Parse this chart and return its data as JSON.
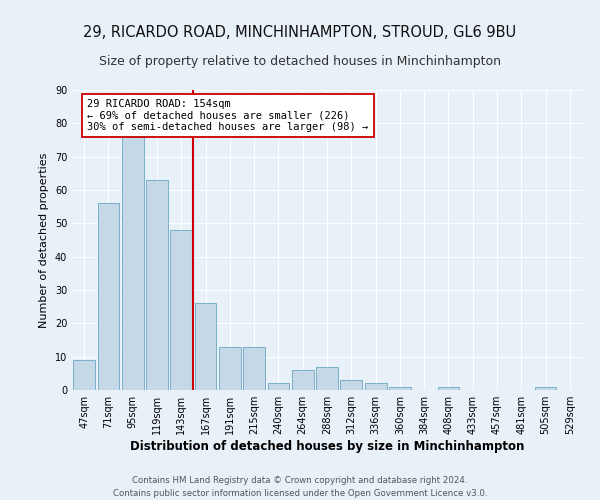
{
  "title": "29, RICARDO ROAD, MINCHINHAMPTON, STROUD, GL6 9BU",
  "subtitle": "Size of property relative to detached houses in Minchinhampton",
  "xlabel": "Distribution of detached houses by size in Minchinhampton",
  "ylabel": "Number of detached properties",
  "footer_line1": "Contains HM Land Registry data © Crown copyright and database right 2024.",
  "footer_line2": "Contains public sector information licensed under the Open Government Licence v3.0.",
  "bar_labels": [
    "47sqm",
    "71sqm",
    "95sqm",
    "119sqm",
    "143sqm",
    "167sqm",
    "191sqm",
    "215sqm",
    "240sqm",
    "264sqm",
    "288sqm",
    "312sqm",
    "336sqm",
    "360sqm",
    "384sqm",
    "408sqm",
    "433sqm",
    "457sqm",
    "481sqm",
    "505sqm",
    "529sqm"
  ],
  "bar_values": [
    9,
    56,
    76,
    63,
    48,
    26,
    13,
    13,
    2,
    6,
    7,
    3,
    2,
    1,
    0,
    1,
    0,
    0,
    0,
    1,
    0
  ],
  "bar_color": "#c5d8e8",
  "bar_edge_color": "#7aafc8",
  "vline_x": 4.5,
  "vline_color": "#cc0000",
  "annotation_line1": "29 RICARDO ROAD: 154sqm",
  "annotation_line2": "← 69% of detached houses are smaller (226)",
  "annotation_line3": "30% of semi-detached houses are larger (98) →",
  "annotation_box_color": "#ffffff",
  "annotation_box_edge": "#cc0000",
  "ylim": [
    0,
    90
  ],
  "yticks": [
    0,
    10,
    20,
    30,
    40,
    50,
    60,
    70,
    80,
    90
  ],
  "bg_color": "#e8f0f8",
  "axes_bg_color": "#e8f0f8",
  "grid_color": "#ffffff",
  "title_fontsize": 10.5,
  "subtitle_fontsize": 9,
  "tick_fontsize": 7,
  "ylabel_fontsize": 8,
  "xlabel_fontsize": 8.5,
  "annotation_fontsize": 7.5,
  "footer_fontsize": 6.2
}
